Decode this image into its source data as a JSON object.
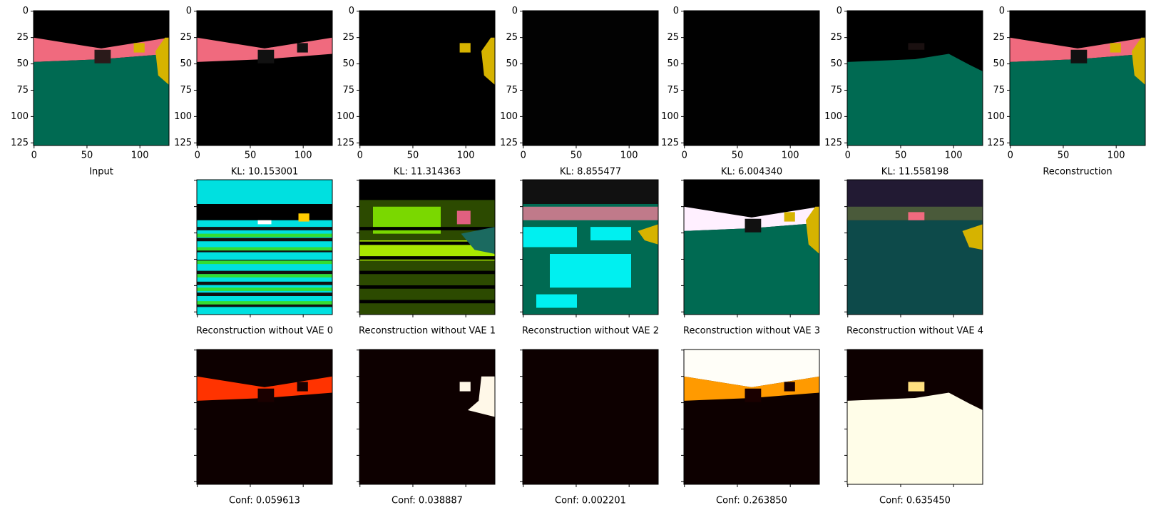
{
  "figure": {
    "axes": {
      "xlim": [
        -0.5,
        127.5
      ],
      "ylim": [
        127.5,
        -0.5
      ],
      "xticks": [
        0,
        50,
        100
      ],
      "yticks": [
        0,
        25,
        50,
        75,
        100,
        125
      ]
    },
    "top_row": [
      "Input",
      "KL: 10.153001",
      "KL: 11.314363",
      "KL: 8.855477",
      "KL: 6.004340",
      "KL: 11.558198",
      "Reconstruction"
    ],
    "middle_row": [
      "Reconstruction without VAE 0",
      "Reconstruction without VAE 1",
      "Reconstruction without VAE 2",
      "Reconstruction without VAE 3",
      "Reconstruction without VAE 4"
    ],
    "bottom_row": [
      "Conf: 0.059613",
      "Conf: 0.038887",
      "Conf: 0.002201",
      "Conf: 0.263850",
      "Conf: 0.635450"
    ]
  }
}
